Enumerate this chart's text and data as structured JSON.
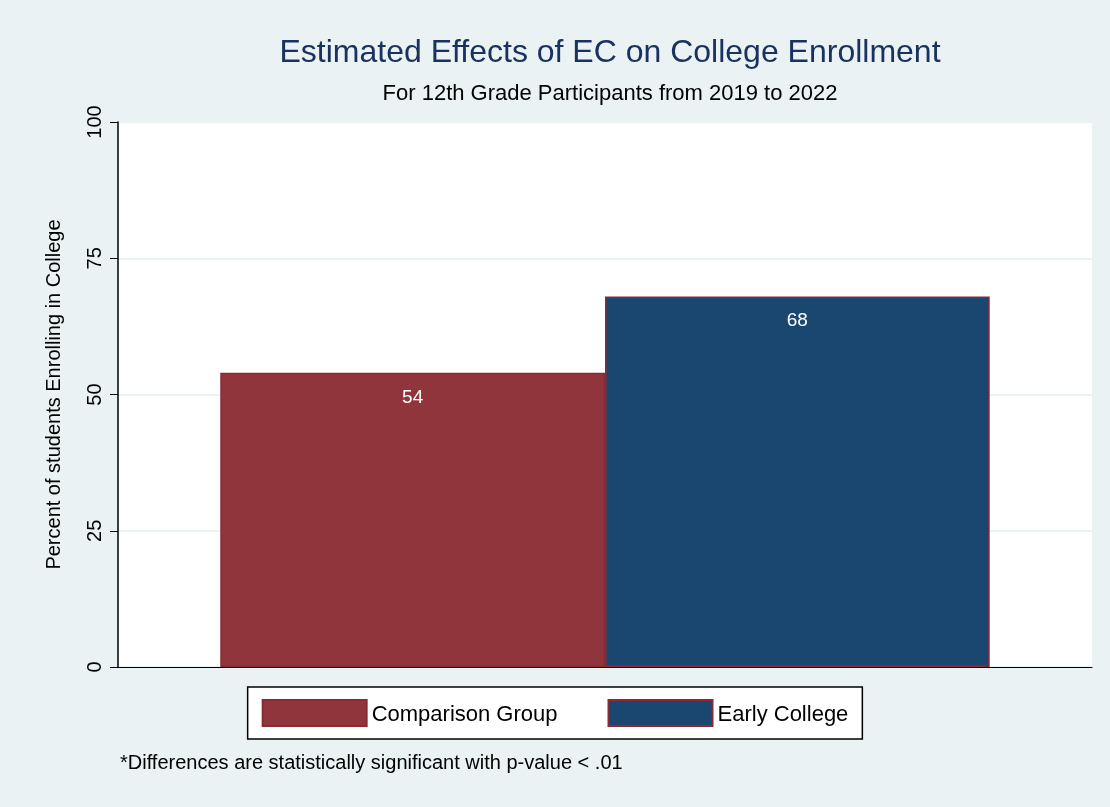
{
  "chart_data": {
    "type": "bar",
    "title": "Estimated Effects of EC on College Enrollment",
    "subtitle": "For 12th Grade Participants from 2019 to 2022",
    "ylabel": "Percent of students Enrolling in College",
    "categories": [
      null
    ],
    "series": [
      {
        "name": "Comparison Group",
        "color": "#90353b",
        "values": [
          54
        ]
      },
      {
        "name": "Early College",
        "color": "#1a476f",
        "values": [
          68
        ]
      }
    ],
    "ylim": [
      0,
      100
    ],
    "yticks": [
      0,
      25,
      50,
      75,
      100
    ],
    "grid": "y",
    "legend": "bottom",
    "data_labels": true,
    "annotations": [
      "*Differences are statistically significant with p-value < .01"
    ]
  }
}
